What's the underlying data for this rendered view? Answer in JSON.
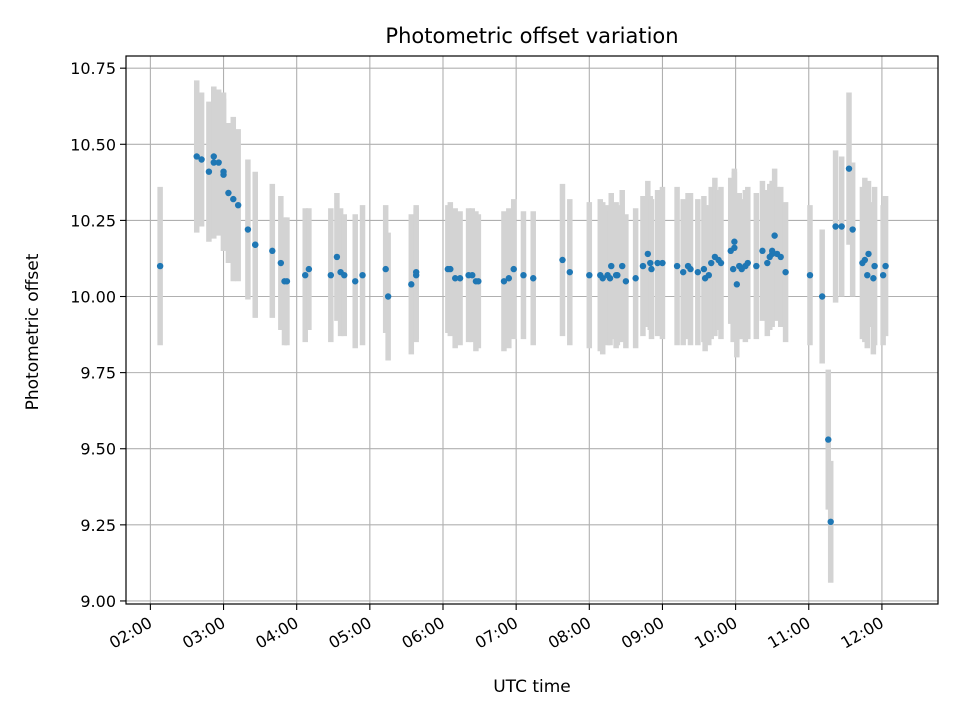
{
  "chart_data": {
    "type": "scatter",
    "title": "Photometric offset variation",
    "xlabel": "UTC time",
    "ylabel": "Photometric offset",
    "xlim": [
      "01:40",
      "12:46"
    ],
    "ylim": [
      8.99,
      10.79
    ],
    "grid": true,
    "colors": {
      "points": "#1f77b4",
      "errorbars": "#d3d3d3",
      "grid": "#b0b0b0"
    },
    "x_ticks": [
      "02:00",
      "03:00",
      "04:00",
      "05:00",
      "06:00",
      "07:00",
      "08:00",
      "09:00",
      "10:00",
      "11:00",
      "12:00"
    ],
    "y_ticks": [
      "9.00",
      "9.25",
      "9.50",
      "9.75",
      "10.00",
      "10.25",
      "10.50",
      "10.75"
    ],
    "series": [
      {
        "x": [
          "02:08",
          "02:38",
          "02:42",
          "02:48",
          "02:52",
          "02:52",
          "02:56",
          "03:00",
          "03:00",
          "03:04",
          "03:08",
          "03:12",
          "03:20",
          "03:26",
          "03:26",
          "03:40",
          "03:47",
          "03:50",
          "03:52",
          "04:07",
          "04:10",
          "04:28",
          "04:33",
          "04:36",
          "04:39",
          "04:48",
          "04:54",
          "05:13",
          "05:15",
          "05:34",
          "05:38",
          "05:38",
          "06:04",
          "06:06",
          "06:10",
          "06:14",
          "06:21",
          "06:24",
          "06:27",
          "06:29",
          "06:50",
          "06:54",
          "06:58",
          "07:06",
          "07:14",
          "07:38",
          "07:44",
          "08:00",
          "08:09",
          "08:11",
          "08:15",
          "08:17",
          "08:18",
          "08:22",
          "08:23",
          "08:27",
          "08:30",
          "08:38",
          "08:44",
          "08:48",
          "08:50",
          "08:51",
          "08:56",
          "09:00",
          "09:12",
          "09:17",
          "09:21",
          "09:23",
          "09:29",
          "09:34",
          "09:35",
          "09:38",
          "09:40",
          "09:43",
          "09:46",
          "09:48",
          "09:56",
          "09:58",
          "09:59",
          "09:59",
          "10:01",
          "10:03",
          "10:05",
          "10:08",
          "10:10",
          "10:17",
          "10:22",
          "10:26",
          "10:28",
          "10:30",
          "10:30",
          "10:32",
          "10:34",
          "10:37",
          "10:41",
          "11:01",
          "11:11",
          "11:16",
          "11:18",
          "11:22",
          "11:27",
          "11:33",
          "11:36",
          "11:44",
          "11:46",
          "11:48",
          "11:49",
          "11:53",
          "11:54",
          "12:01",
          "12:03"
        ],
        "y": [
          10.1,
          10.46,
          10.45,
          10.41,
          10.46,
          10.44,
          10.44,
          10.4,
          10.41,
          10.34,
          10.32,
          10.3,
          10.22,
          10.17,
          10.17,
          10.15,
          10.11,
          10.05,
          10.05,
          10.07,
          10.09,
          10.07,
          10.13,
          10.08,
          10.07,
          10.05,
          10.07,
          10.09,
          10.0,
          10.04,
          10.07,
          10.08,
          10.09,
          10.09,
          10.06,
          10.06,
          10.07,
          10.07,
          10.05,
          10.05,
          10.05,
          10.06,
          10.09,
          10.07,
          10.06,
          10.12,
          10.08,
          10.07,
          10.07,
          10.06,
          10.07,
          10.06,
          10.1,
          10.07,
          10.07,
          10.1,
          10.05,
          10.06,
          10.1,
          10.14,
          10.11,
          10.09,
          10.11,
          10.11,
          10.1,
          10.08,
          10.1,
          10.09,
          10.08,
          10.09,
          10.06,
          10.07,
          10.11,
          10.13,
          10.12,
          10.11,
          10.15,
          10.09,
          10.16,
          10.18,
          10.04,
          10.1,
          10.09,
          10.1,
          10.11,
          10.1,
          10.15,
          10.11,
          10.13,
          10.14,
          10.15,
          10.2,
          10.14,
          10.13,
          10.08,
          10.07,
          10.0,
          9.53,
          9.26,
          10.23,
          10.23,
          10.42,
          10.22,
          10.11,
          10.12,
          10.07,
          10.14,
          10.06,
          10.1,
          10.07,
          10.1
        ],
        "yerr": [
          0.26,
          0.25,
          0.22,
          0.23,
          0.23,
          0.25,
          0.24,
          0.25,
          0.26,
          0.23,
          0.27,
          0.25,
          0.23,
          0.24,
          0.23,
          0.22,
          0.22,
          0.21,
          0.21,
          0.22,
          0.2,
          0.22,
          0.21,
          0.21,
          0.2,
          0.22,
          0.23,
          0.21,
          0.21,
          0.23,
          0.22,
          0.22,
          0.21,
          0.22,
          0.23,
          0.22,
          0.22,
          0.22,
          0.23,
          0.22,
          0.23,
          0.23,
          0.23,
          0.21,
          0.22,
          0.25,
          0.24,
          0.24,
          0.25,
          0.25,
          0.23,
          0.22,
          0.24,
          0.24,
          0.23,
          0.25,
          0.22,
          0.23,
          0.23,
          0.24,
          0.22,
          0.23,
          0.24,
          0.25,
          0.26,
          0.24,
          0.24,
          0.25,
          0.24,
          0.24,
          0.24,
          0.23,
          0.25,
          0.26,
          0.23,
          0.25,
          0.24,
          0.24,
          0.25,
          0.24,
          0.24,
          0.24,
          0.23,
          0.25,
          0.25,
          0.24,
          0.23,
          0.24,
          0.24,
          0.24,
          0.23,
          0.22,
          0.22,
          0.23,
          0.23,
          0.23,
          0.22,
          0.23,
          0.2,
          0.25,
          0.23,
          0.25,
          0.22,
          0.25,
          0.27,
          0.24,
          0.24,
          0.25,
          0.26,
          0.23,
          0.23
        ]
      }
    ]
  }
}
